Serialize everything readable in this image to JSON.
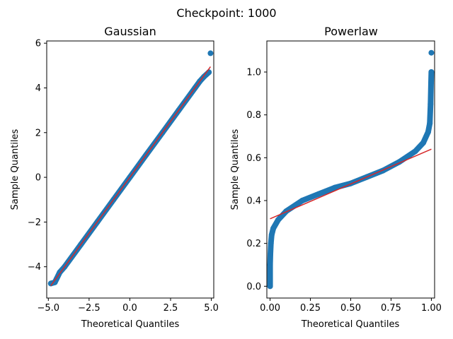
{
  "suptitle": "Checkpoint: 1000",
  "colors": {
    "points": "#1f77b4",
    "fit": "#d62728"
  },
  "chart_data": [
    {
      "type": "scatter",
      "title": "Gaussian",
      "xlabel": "Theoretical Quantiles",
      "ylabel": "Sample Quantiles",
      "xlim": [
        -5.1,
        5.15
      ],
      "ylim": [
        -5.4,
        6.1
      ],
      "xticks": [
        -5.0,
        -2.5,
        0.0,
        2.5,
        5.0
      ],
      "xtick_labels": [
        "−5.0",
        "−2.5",
        "0.0",
        "2.5",
        "5.0"
      ],
      "yticks": [
        -4,
        -2,
        0,
        2,
        4,
        6
      ],
      "ytick_labels": [
        "−4",
        "−2",
        "0",
        "2",
        "4",
        "6"
      ],
      "points": [
        [
          -4.85,
          -4.75
        ],
        [
          -4.6,
          -4.7
        ],
        [
          -4.5,
          -4.55
        ],
        [
          -4.3,
          -4.25
        ],
        [
          -4.0,
          -4.0
        ],
        [
          -3.0,
          -3.0
        ],
        [
          -2.0,
          -2.0
        ],
        [
          -1.0,
          -1.0
        ],
        [
          0.0,
          0.0
        ],
        [
          1.0,
          1.0
        ],
        [
          2.0,
          2.0
        ],
        [
          3.0,
          3.0
        ],
        [
          4.0,
          4.0
        ],
        [
          4.3,
          4.3
        ],
        [
          4.55,
          4.5
        ],
        [
          4.85,
          4.7
        ],
        [
          4.95,
          5.55
        ]
      ],
      "fit_line": [
        [
          -4.85,
          -4.85
        ],
        [
          4.95,
          4.95
        ]
      ]
    },
    {
      "type": "scatter",
      "title": "Powerlaw",
      "xlabel": "Theoretical Quantiles",
      "ylabel": "Sample Quantiles",
      "xlim": [
        -0.02,
        1.02
      ],
      "ylim": [
        -0.055,
        1.145
      ],
      "xticks": [
        0.0,
        0.25,
        0.5,
        0.75,
        1.0
      ],
      "xtick_labels": [
        "0.00",
        "0.25",
        "0.50",
        "0.75",
        "1.00"
      ],
      "yticks": [
        0.0,
        0.2,
        0.4,
        0.6,
        0.8,
        1.0
      ],
      "ytick_labels": [
        "0.0",
        "0.2",
        "0.4",
        "0.6",
        "0.8",
        "1.0"
      ],
      "points": [
        [
          0.0,
          0.0
        ],
        [
          0.0,
          0.1
        ],
        [
          0.002,
          0.15
        ],
        [
          0.005,
          0.2
        ],
        [
          0.01,
          0.24
        ],
        [
          0.02,
          0.27
        ],
        [
          0.05,
          0.31
        ],
        [
          0.1,
          0.35
        ],
        [
          0.2,
          0.4
        ],
        [
          0.3,
          0.43
        ],
        [
          0.4,
          0.46
        ],
        [
          0.5,
          0.48
        ],
        [
          0.6,
          0.51
        ],
        [
          0.7,
          0.54
        ],
        [
          0.8,
          0.58
        ],
        [
          0.9,
          0.63
        ],
        [
          0.95,
          0.67
        ],
        [
          0.98,
          0.72
        ],
        [
          0.99,
          0.76
        ],
        [
          0.995,
          0.85
        ],
        [
          0.998,
          0.95
        ],
        [
          1.0,
          1.0
        ],
        [
          1.0,
          1.09
        ]
      ],
      "fit_line": [
        [
          0.0,
          0.315
        ],
        [
          1.0,
          0.64
        ]
      ]
    }
  ]
}
